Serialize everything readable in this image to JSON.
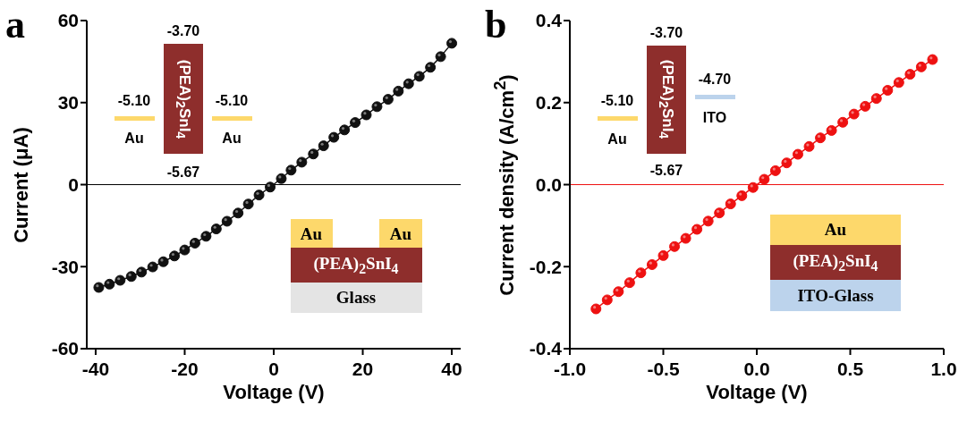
{
  "chart_data": [
    {
      "type": "line",
      "title": "a",
      "xlabel": "Voltage (V)",
      "ylabel": "Current (μA)",
      "marker": "circle",
      "xlim": [
        -42,
        42
      ],
      "xticks": [
        -40,
        -20,
        0,
        20,
        40
      ],
      "ylim": [
        -60,
        60
      ],
      "yticks": [
        -60,
        -30,
        0,
        30,
        60
      ],
      "series": [
        {
          "color": "#111111",
          "x": [
            -39.3,
            -36.9,
            -34.5,
            -32,
            -29.7,
            -27.2,
            -24.8,
            -22.3,
            -20,
            -17.7,
            -15.2,
            -12.9,
            -10.5,
            -8,
            -5.7,
            -3.3,
            -0.8,
            1.7,
            3.9,
            6.3,
            8.9,
            11.2,
            13.5,
            15.9,
            18.3,
            20.8,
            23.2,
            25.7,
            28,
            30.3,
            32.7,
            35.2,
            37.5,
            40
          ],
          "values": [
            -37.6,
            -36.4,
            -35,
            -33.6,
            -32,
            -30.1,
            -28.2,
            -26.1,
            -23.9,
            -21.4,
            -18.9,
            -16.2,
            -13.4,
            -10.4,
            -7.1,
            -3.8,
            -0.9,
            2.2,
            5.3,
            8.2,
            11.2,
            14.2,
            17.3,
            20,
            22.7,
            25.5,
            28.5,
            31.2,
            34.2,
            36.9,
            39.6,
            42.9,
            46.8,
            51.7
          ]
        }
      ],
      "ref_lines": [
        {
          "axis": "y",
          "value": 0,
          "color": "#000000"
        }
      ],
      "annotations": [
        "-3.70",
        "-5.10",
        "-5.10",
        "-5.67",
        "Au",
        "Au",
        "(PEA)$_{2}$SnI$_{4}$",
        "Au",
        "Au",
        "(PEA)$_{2}$SnI$_{4}$",
        "Glass"
      ]
    },
    {
      "type": "line",
      "title": "b",
      "xlabel": "Voltage (V)",
      "ylabel": "Current density (A/cm$^{2}$)",
      "marker": "circle",
      "xlim": [
        -1,
        1
      ],
      "xticks": [
        {
          "value": -1,
          "label": "-1.0"
        },
        -0.5,
        {
          "value": 0,
          "label": "0.0"
        },
        0.5,
        {
          "value": 1,
          "label": "1.0"
        }
      ],
      "ylim": [
        -0.4,
        0.4
      ],
      "yticks": [
        -0.4,
        -0.2,
        {
          "value": 0,
          "label": "0.0"
        },
        0.2,
        0.4
      ],
      "series": [
        {
          "color": "#ee1111",
          "x": [
            -0.86,
            -0.8,
            -0.74,
            -0.68,
            -0.62,
            -0.56,
            -0.5,
            -0.44,
            -0.38,
            -0.32,
            -0.26,
            -0.2,
            -0.14,
            -0.08,
            -0.02,
            0.04,
            0.1,
            0.16,
            0.22,
            0.28,
            0.34,
            0.4,
            0.46,
            0.52,
            0.58,
            0.64,
            0.7,
            0.76,
            0.82,
            0.88,
            0.94
          ],
          "values": [
            -0.303,
            -0.281,
            -0.261,
            -0.239,
            -0.215,
            -0.195,
            -0.173,
            -0.151,
            -0.131,
            -0.109,
            -0.089,
            -0.069,
            -0.047,
            -0.027,
            -0.007,
            0.013,
            0.034,
            0.053,
            0.074,
            0.093,
            0.114,
            0.132,
            0.152,
            0.172,
            0.191,
            0.21,
            0.23,
            0.249,
            0.269,
            0.287,
            0.305
          ]
        }
      ],
      "ref_lines": [
        {
          "axis": "y",
          "value": 0,
          "color": "#ee1111"
        }
      ],
      "annotations": [
        "-3.70",
        "-5.10",
        "-4.70",
        "-5.67",
        "Au",
        "(PEA)$_{2}$SnI$_{4}$",
        "ITO",
        "Au",
        "(PEA)$_{2}$SnI$_{4}$",
        "ITO-Glass"
      ]
    }
  ]
}
